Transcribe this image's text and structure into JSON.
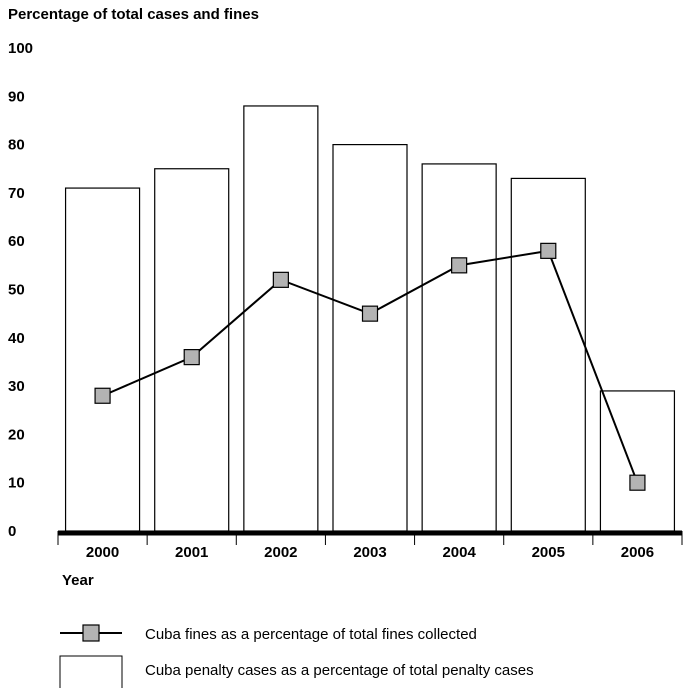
{
  "chart_data": {
    "type": "bar",
    "title": "Percentage of total cases and fines",
    "xlabel": "Year",
    "ylabel": "",
    "ylim": [
      0,
      100
    ],
    "yticks": [
      0,
      10,
      20,
      30,
      40,
      50,
      60,
      70,
      80,
      90,
      100
    ],
    "categories": [
      "2000",
      "2001",
      "2002",
      "2003",
      "2004",
      "2005",
      "2006"
    ],
    "grid": false,
    "legend_position": "bottom-left",
    "series": [
      {
        "name": "Cuba penalty cases as a percentage of total penalty cases",
        "type": "bar",
        "values": [
          71,
          75,
          88,
          80,
          76,
          73,
          29
        ],
        "fill": "#ffffff",
        "stroke": "#000000"
      },
      {
        "name": "Cuba fines as a percentage of total fines collected",
        "type": "line",
        "marker": "square",
        "values": [
          28,
          36,
          52,
          45,
          55,
          58,
          10
        ],
        "line_color": "#000000",
        "marker_fill": "#b3b3b3"
      }
    ]
  }
}
